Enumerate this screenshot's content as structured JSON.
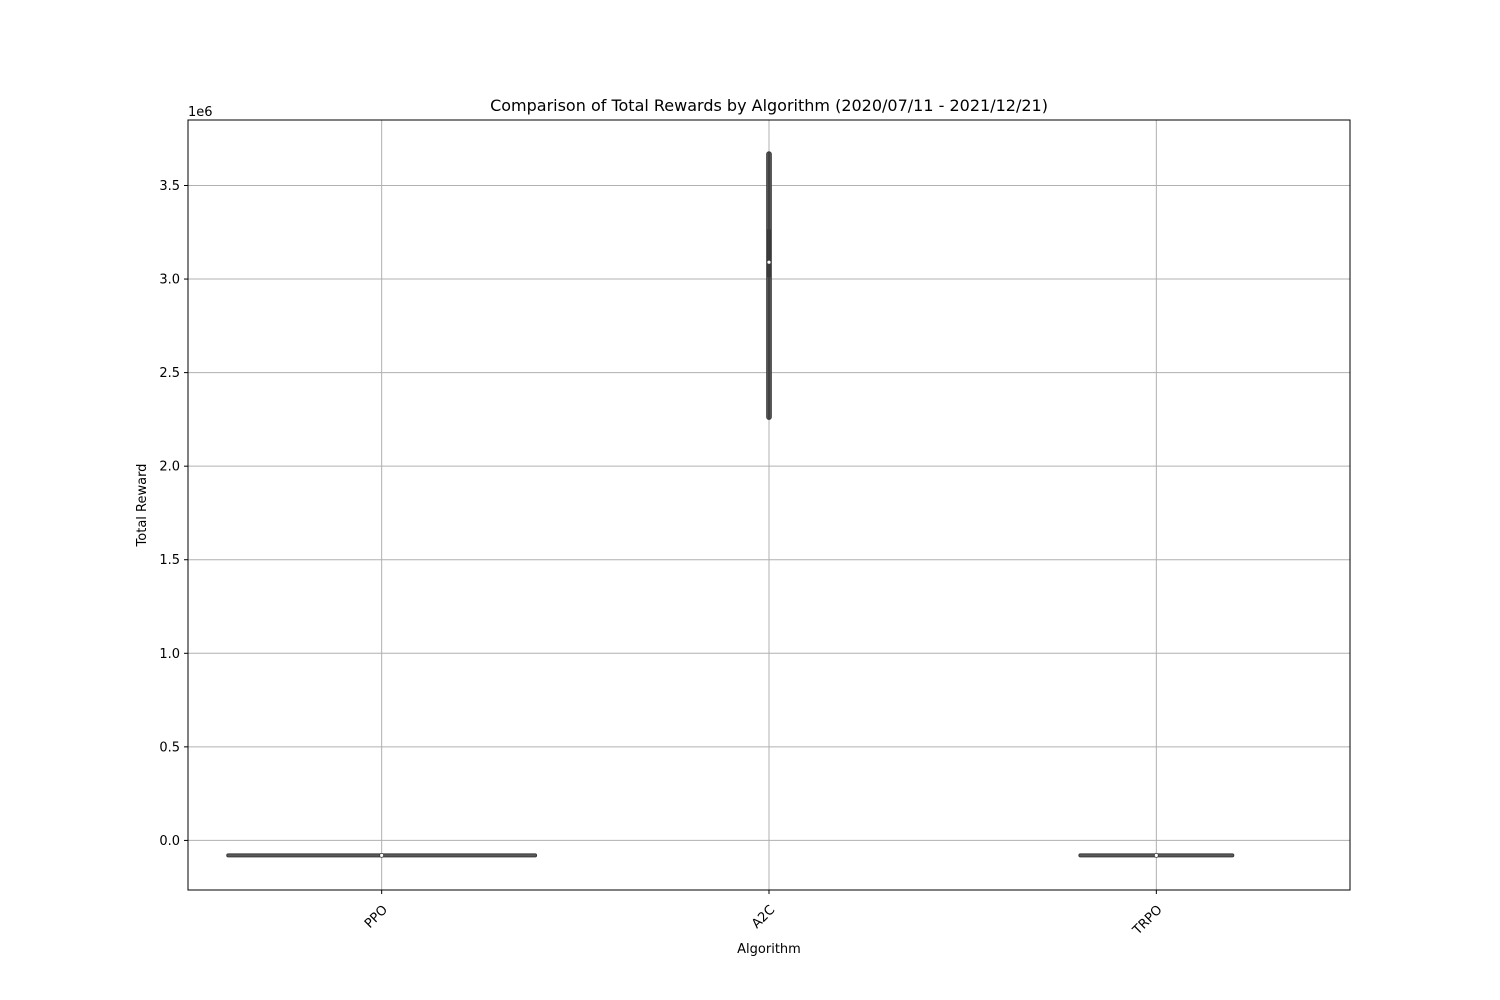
{
  "chart_data": {
    "type": "violin",
    "title": "Comparison of Total Rewards by Algorithm (2020/07/11 - 2021/12/21)",
    "xlabel": "Algorithm",
    "ylabel": "Total Reward",
    "y_offset_label": "1e6",
    "categories": [
      "PPO",
      "A2C",
      "TRPO"
    ],
    "ylim": [
      -265000,
      3850000
    ],
    "yticks": [
      0.0,
      500000,
      1000000,
      1500000,
      2000000,
      2500000,
      3000000,
      3500000
    ],
    "ytick_labels": [
      "0.0",
      "0.5",
      "1.0",
      "1.5",
      "2.0",
      "2.5",
      "3.0",
      "3.5"
    ],
    "grid": true,
    "violins": [
      {
        "category": "PPO",
        "min": -82000,
        "q1": -81000,
        "median": -80000,
        "q3": -79000,
        "max": -78000,
        "relative_width": 0.8
      },
      {
        "category": "A2C",
        "min": 2250000,
        "q1": 3010000,
        "median": 3090000,
        "q3": 3265000,
        "max": 3680000,
        "relative_width": 0.012
      },
      {
        "category": "TRPO",
        "min": -82000,
        "q1": -81000,
        "median": -80000,
        "q3": -79000,
        "max": -78000,
        "relative_width": 0.4
      }
    ],
    "colors": {
      "box": "#3a3a3a",
      "median_dot": "#ffffff",
      "grid": "#b0b0b0",
      "frame": "#000000"
    }
  }
}
